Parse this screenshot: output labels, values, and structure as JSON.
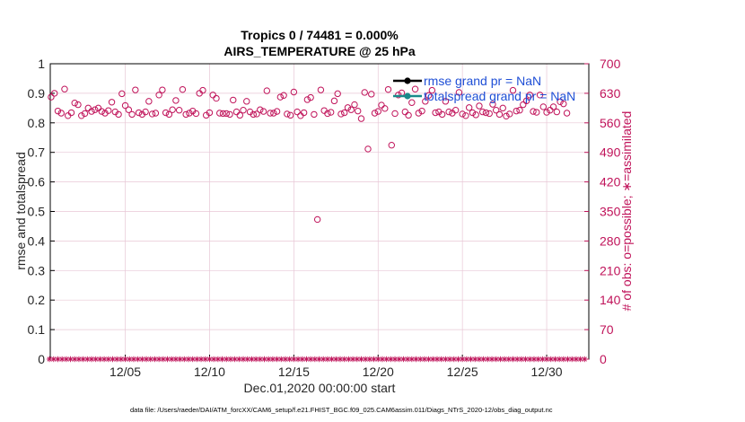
{
  "chart_data": {
    "type": "scatter",
    "title": "Tropics 0 / 74481 = 0.000%",
    "subtitle": "AIRS_TEMPERATURE @ 25 hPa",
    "xlabel": "Dec.01,2020 00:00:00 start",
    "ylabel_left": "rmse and totalspread",
    "ylabel_right": "# of obs: o=possible; ∗=assimilated",
    "ylim_left": [
      0,
      1
    ],
    "ylim_right": [
      0,
      700
    ],
    "xlim": [
      0.55,
      32.5
    ],
    "x_unit": "day of Dec 2020 (Dec.01 00:00 = 1.0)",
    "left_ticks": [
      "0",
      "0.1",
      "0.2",
      "0.3",
      "0.4",
      "0.5",
      "0.6",
      "0.7",
      "0.8",
      "0.9",
      "1"
    ],
    "right_ticks": [
      "0",
      "70",
      "140",
      "210",
      "280",
      "350",
      "420",
      "490",
      "560",
      "630",
      "700"
    ],
    "x_ticks": [
      {
        "day": 5.0,
        "label": "12/05"
      },
      {
        "day": 10.0,
        "label": "12/10"
      },
      {
        "day": 15.0,
        "label": "12/15"
      },
      {
        "day": 20.0,
        "label": "12/20"
      },
      {
        "day": 25.0,
        "label": "12/25"
      },
      {
        "day": 30.0,
        "label": "12/30"
      }
    ],
    "grid": true,
    "legend_position": "top-right",
    "series": [
      {
        "name": "rmse grand pr = NaN",
        "color": "#000000",
        "values": []
      },
      {
        "name": "totalspread grand pr = NaN",
        "color": "#198a8a",
        "values": []
      },
      {
        "name": "",
        "marker": "o",
        "color": "#c0135a",
        "points": [
          [
            0.6,
            621
          ],
          [
            0.8,
            630
          ],
          [
            1.0,
            588
          ],
          [
            1.2,
            583
          ],
          [
            1.4,
            640
          ],
          [
            1.6,
            577
          ],
          [
            1.8,
            584
          ],
          [
            2.0,
            607
          ],
          [
            2.2,
            603
          ],
          [
            2.4,
            577
          ],
          [
            2.6,
            582
          ],
          [
            2.8,
            595
          ],
          [
            3.0,
            587
          ],
          [
            3.2,
            591
          ],
          [
            3.4,
            595
          ],
          [
            3.6,
            587
          ],
          [
            3.8,
            583
          ],
          [
            4.0,
            589
          ],
          [
            4.2,
            609
          ],
          [
            4.4,
            586
          ],
          [
            4.6,
            580
          ],
          [
            4.8,
            629
          ],
          [
            5.0,
            601
          ],
          [
            5.2,
            591
          ],
          [
            5.4,
            580
          ],
          [
            5.6,
            638
          ],
          [
            5.8,
            584
          ],
          [
            6.0,
            580
          ],
          [
            6.2,
            586
          ],
          [
            6.4,
            611
          ],
          [
            6.6,
            581
          ],
          [
            6.8,
            583
          ],
          [
            7.0,
            626
          ],
          [
            7.2,
            638
          ],
          [
            7.4,
            584
          ],
          [
            7.6,
            580
          ],
          [
            7.8,
            591
          ],
          [
            8.0,
            613
          ],
          [
            8.2,
            590
          ],
          [
            8.4,
            639
          ],
          [
            8.6,
            580
          ],
          [
            8.8,
            583
          ],
          [
            9.0,
            588
          ],
          [
            9.2,
            582
          ],
          [
            9.4,
            630
          ],
          [
            9.6,
            637
          ],
          [
            9.8,
            578
          ],
          [
            10.0,
            584
          ],
          [
            10.2,
            626
          ],
          [
            10.4,
            618
          ],
          [
            10.6,
            583
          ],
          [
            10.8,
            582
          ],
          [
            11.0,
            582
          ],
          [
            11.2,
            580
          ],
          [
            11.4,
            614
          ],
          [
            11.6,
            586
          ],
          [
            11.8,
            578
          ],
          [
            12.0,
            590
          ],
          [
            12.2,
            611
          ],
          [
            12.4,
            586
          ],
          [
            12.6,
            580
          ],
          [
            12.8,
            581
          ],
          [
            13.0,
            591
          ],
          [
            13.2,
            587
          ],
          [
            13.4,
            636
          ],
          [
            13.6,
            583
          ],
          [
            13.8,
            583
          ],
          [
            14.0,
            587
          ],
          [
            14.2,
            621
          ],
          [
            14.4,
            625
          ],
          [
            14.6,
            581
          ],
          [
            14.8,
            578
          ],
          [
            15.0,
            633
          ],
          [
            15.2,
            586
          ],
          [
            15.4,
            577
          ],
          [
            15.6,
            584
          ],
          [
            15.8,
            615
          ],
          [
            16.0,
            620
          ],
          [
            16.2,
            580
          ],
          [
            16.4,
            331
          ],
          [
            16.6,
            638
          ],
          [
            16.8,
            589
          ],
          [
            17.0,
            582
          ],
          [
            17.2,
            585
          ],
          [
            17.4,
            612
          ],
          [
            17.6,
            629
          ],
          [
            17.8,
            581
          ],
          [
            18.0,
            584
          ],
          [
            18.2,
            596
          ],
          [
            18.4,
            591
          ],
          [
            18.6,
            603
          ],
          [
            18.8,
            588
          ],
          [
            19.0,
            570
          ],
          [
            19.2,
            632
          ],
          [
            19.4,
            498
          ],
          [
            19.6,
            628
          ],
          [
            19.8,
            583
          ],
          [
            20.0,
            587
          ],
          [
            20.2,
            602
          ],
          [
            20.4,
            594
          ],
          [
            20.6,
            639
          ],
          [
            20.8,
            507
          ],
          [
            21.0,
            582
          ],
          [
            21.2,
            626
          ],
          [
            21.4,
            631
          ],
          [
            21.6,
            586
          ],
          [
            21.8,
            578
          ],
          [
            22.0,
            608
          ],
          [
            22.2,
            640
          ],
          [
            22.4,
            583
          ],
          [
            22.6,
            588
          ],
          [
            22.8,
            611
          ],
          [
            23.0,
            625
          ],
          [
            23.2,
            637
          ],
          [
            23.4,
            584
          ],
          [
            23.6,
            586
          ],
          [
            23.8,
            580
          ],
          [
            24.0,
            611
          ],
          [
            24.2,
            586
          ],
          [
            24.4,
            583
          ],
          [
            24.6,
            590
          ],
          [
            24.8,
            632
          ],
          [
            25.0,
            581
          ],
          [
            25.2,
            577
          ],
          [
            25.4,
            596
          ],
          [
            25.6,
            584
          ],
          [
            25.8,
            579
          ],
          [
            26.0,
            600
          ],
          [
            26.2,
            586
          ],
          [
            26.4,
            584
          ],
          [
            26.6,
            582
          ],
          [
            26.8,
            604
          ],
          [
            27.0,
            590
          ],
          [
            27.2,
            580
          ],
          [
            27.4,
            595
          ],
          [
            27.6,
            576
          ],
          [
            27.8,
            581
          ],
          [
            28.0,
            637
          ],
          [
            28.2,
            588
          ],
          [
            28.4,
            590
          ],
          [
            28.6,
            603
          ],
          [
            28.8,
            612
          ],
          [
            29.0,
            626
          ],
          [
            29.2,
            587
          ],
          [
            29.4,
            585
          ],
          [
            29.6,
            626
          ],
          [
            29.8,
            598
          ],
          [
            30.0,
            585
          ],
          [
            30.2,
            590
          ],
          [
            30.4,
            598
          ],
          [
            30.6,
            586
          ],
          [
            30.8,
            610
          ],
          [
            31.0,
            605
          ],
          [
            31.2,
            583
          ]
        ]
      },
      {
        "name": "",
        "marker": "*",
        "color": "#c0135a",
        "start": 0.5,
        "step": 0.25,
        "count": 128,
        "value": 0
      }
    ]
  },
  "footer": "data file: /Users/raeder/DAI/ATM_forcXX/CAM6_setup/f.e21.FHIST_BGC.f09_025.CAM6assim.011/Diags_NTrS_2020-12/obs_diag_output.nc"
}
